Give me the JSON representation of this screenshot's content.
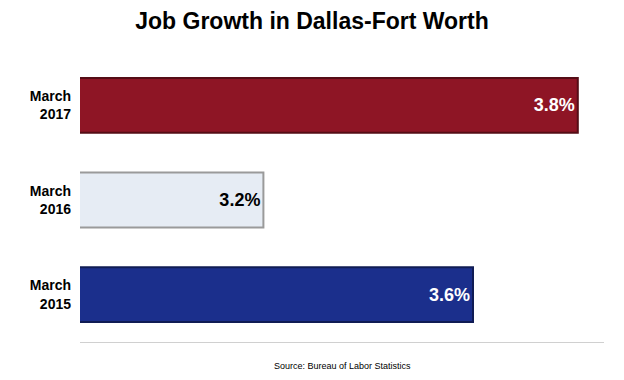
{
  "chart_data": {
    "type": "bar",
    "orientation": "horizontal",
    "title": "Job Growth in Dallas-Fort Worth",
    "annotation": "Source: Bureau of Labor Statistics",
    "categories": [
      "March 2017",
      "March 2016",
      "March 2015"
    ],
    "values": [
      3.8,
      3.2,
      3.6
    ],
    "value_labels": [
      "3.8%",
      "3.2%",
      "3.6%"
    ],
    "colors": [
      "#8e1525",
      "#e6ecf4",
      "#1b2f8c"
    ],
    "xlim": [
      2.85,
      3.85
    ],
    "data_labels": true,
    "tick_labels": "y",
    "grid": false
  }
}
